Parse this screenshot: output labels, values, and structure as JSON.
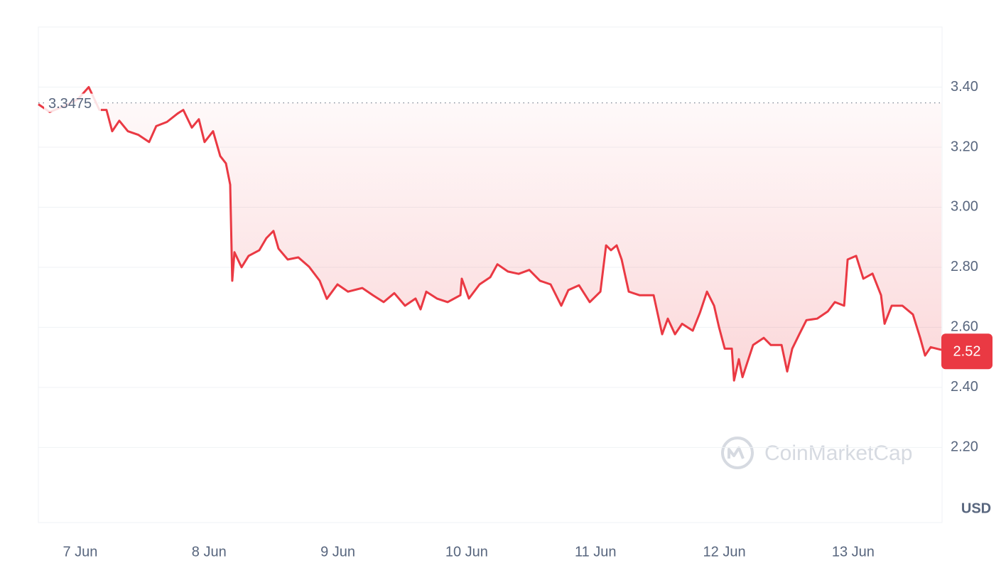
{
  "chart_data": {
    "type": "line",
    "color": "#ea3943",
    "x": [
      6.675,
      6.763,
      6.873,
      6.983,
      7.066,
      7.149,
      7.204,
      7.248,
      7.303,
      7.37,
      7.452,
      7.535,
      7.59,
      7.673,
      7.756,
      7.8,
      7.866,
      7.921,
      7.965,
      8.031,
      8.087,
      8.131,
      8.164,
      8.18,
      8.197,
      8.252,
      8.307,
      8.39,
      8.445,
      8.5,
      8.539,
      8.611,
      8.693,
      8.776,
      8.859,
      8.914,
      8.997,
      9.079,
      9.19,
      9.272,
      9.355,
      9.438,
      9.521,
      9.603,
      9.642,
      9.686,
      9.769,
      9.852,
      9.951,
      9.962,
      10.017,
      10.1,
      10.183,
      10.238,
      10.32,
      10.403,
      10.486,
      10.569,
      10.651,
      10.734,
      10.789,
      10.872,
      10.955,
      11.038,
      11.082,
      11.12,
      11.164,
      11.203,
      11.258,
      11.341,
      11.451,
      11.517,
      11.561,
      11.617,
      11.672,
      11.755,
      11.81,
      11.865,
      11.92,
      11.959,
      12.003,
      12.058,
      12.075,
      12.113,
      12.141,
      12.223,
      12.306,
      12.361,
      12.444,
      12.488,
      12.527,
      12.582,
      12.637,
      12.72,
      12.803,
      12.858,
      12.93,
      12.957,
      13.023,
      13.079,
      13.15,
      13.216,
      13.244,
      13.299,
      13.382,
      13.464,
      13.52,
      13.558,
      13.602,
      13.685
    ],
    "values": [
      3.343,
      3.317,
      3.336,
      3.36,
      3.4,
      3.324,
      3.324,
      3.253,
      3.288,
      3.253,
      3.241,
      3.217,
      3.27,
      3.284,
      3.312,
      3.324,
      3.265,
      3.293,
      3.217,
      3.253,
      3.17,
      3.146,
      3.075,
      2.755,
      2.85,
      2.8,
      2.838,
      2.857,
      2.897,
      2.921,
      2.862,
      2.826,
      2.833,
      2.802,
      2.755,
      2.695,
      2.743,
      2.719,
      2.731,
      2.707,
      2.684,
      2.714,
      2.672,
      2.696,
      2.66,
      2.719,
      2.696,
      2.684,
      2.707,
      2.762,
      2.696,
      2.743,
      2.767,
      2.81,
      2.786,
      2.778,
      2.791,
      2.755,
      2.743,
      2.672,
      2.724,
      2.74,
      2.684,
      2.719,
      2.873,
      2.857,
      2.873,
      2.826,
      2.719,
      2.707,
      2.707,
      2.577,
      2.629,
      2.577,
      2.612,
      2.589,
      2.648,
      2.719,
      2.672,
      2.6,
      2.529,
      2.529,
      2.423,
      2.494,
      2.434,
      2.541,
      2.565,
      2.541,
      2.541,
      2.453,
      2.529,
      2.577,
      2.624,
      2.629,
      2.653,
      2.684,
      2.672,
      2.826,
      2.838,
      2.762,
      2.779,
      2.707,
      2.612,
      2.672,
      2.672,
      2.643,
      2.565,
      2.506,
      2.534,
      2.525
    ],
    "xlim": [
      6.675,
      13.69
    ],
    "xticks": [
      {
        "value": 7,
        "label": "7 Jun"
      },
      {
        "value": 8,
        "label": "8 Jun"
      },
      {
        "value": 9,
        "label": "9 Jun"
      },
      {
        "value": 10,
        "label": "10 Jun"
      },
      {
        "value": 11,
        "label": "11 Jun"
      },
      {
        "value": 12,
        "label": "12 Jun"
      },
      {
        "value": 13,
        "label": "13 Jun"
      }
    ],
    "ylim": [
      1.95,
      3.6
    ],
    "yticks": [
      {
        "value": 2.2,
        "label": "2.20"
      },
      {
        "value": 2.4,
        "label": "2.40"
      },
      {
        "value": 2.6,
        "label": "2.60"
      },
      {
        "value": 2.8,
        "label": "2.80"
      },
      {
        "value": 3.0,
        "label": "3.00"
      },
      {
        "value": 3.2,
        "label": "3.20"
      },
      {
        "value": 3.4,
        "label": "3.40"
      }
    ],
    "grid": true,
    "reference": 3.3475,
    "current": 2.52,
    "currency": "USD",
    "watermark": "CoinMarketCap"
  }
}
